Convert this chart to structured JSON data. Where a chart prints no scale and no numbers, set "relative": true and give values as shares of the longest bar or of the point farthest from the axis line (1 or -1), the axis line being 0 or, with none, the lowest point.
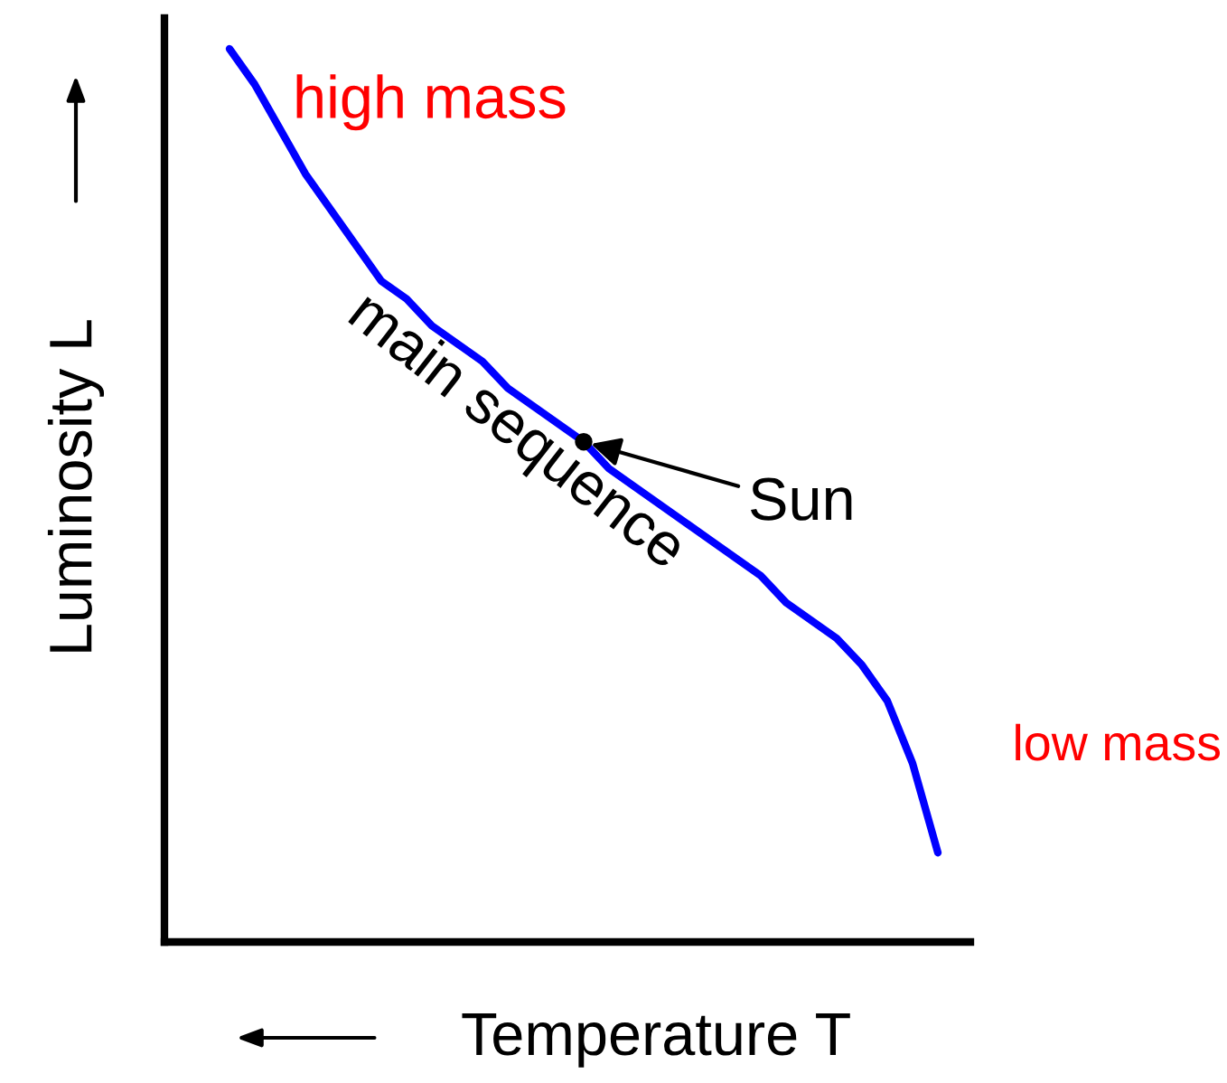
{
  "chart_data": {
    "type": "line",
    "relative": true,
    "xlabel": "Temperature T",
    "ylabel": "Luminosity L",
    "categories": [
      null,
      null,
      null,
      null,
      null,
      null,
      null,
      null,
      null,
      null,
      null,
      null,
      null,
      null,
      null,
      null,
      null,
      null,
      null,
      null,
      null,
      null,
      null,
      null,
      null,
      null,
      null,
      null,
      null
    ],
    "series": [
      {
        "color": "#0000ff",
        "values": [
          1.0,
          0.96,
          0.91,
          0.86,
          0.82,
          0.78,
          0.74,
          0.72,
          0.69,
          0.67,
          0.65,
          0.62,
          0.6,
          0.58,
          0.56,
          0.53,
          0.51,
          0.49,
          0.47,
          0.45,
          0.43,
          0.41,
          0.38,
          0.36,
          0.34,
          0.31,
          0.27,
          0.2,
          0.1
        ]
      }
    ],
    "annotations": [
      "high mass",
      "main sequence",
      "Sun",
      "low mass"
    ],
    "grid": false,
    "line_style": "solid",
    "marker": "none"
  }
}
